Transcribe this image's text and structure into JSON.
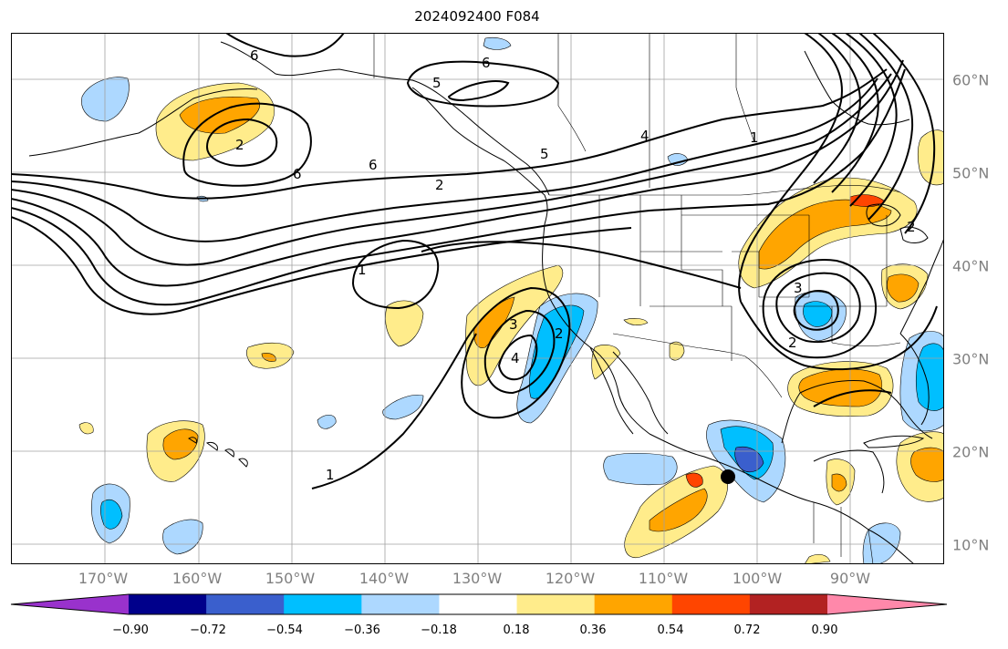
{
  "title": "2024092400 F084",
  "lon_labels": [
    "170°W",
    "160°W",
    "150°W",
    "140°W",
    "130°W",
    "120°W",
    "110°W",
    "100°W",
    "90°W"
  ],
  "lat_labels": [
    "60°N",
    "50°N",
    "40°N",
    "30°N",
    "20°N",
    "10°N"
  ],
  "colorbar": {
    "colors": [
      "#9932cc",
      "#00008b",
      "#3a5fcd",
      "#00bfff",
      "#add8ff",
      "#ffffff",
      "#ffec8b",
      "#ffa500",
      "#ff4500",
      "#b22222",
      "#ff88aa"
    ],
    "tick_labels": [
      "−0.90",
      "−0.72",
      "−0.54",
      "−0.36",
      "−0.18",
      "0.18",
      "0.36",
      "0.54",
      "0.72",
      "0.90"
    ]
  },
  "contour_labels": [
    "6",
    "6",
    "6",
    "6",
    "5",
    "5",
    "4",
    "2",
    "2",
    "1",
    "1",
    "1",
    "3",
    "4",
    "2",
    "2",
    "3",
    "2"
  ]
}
